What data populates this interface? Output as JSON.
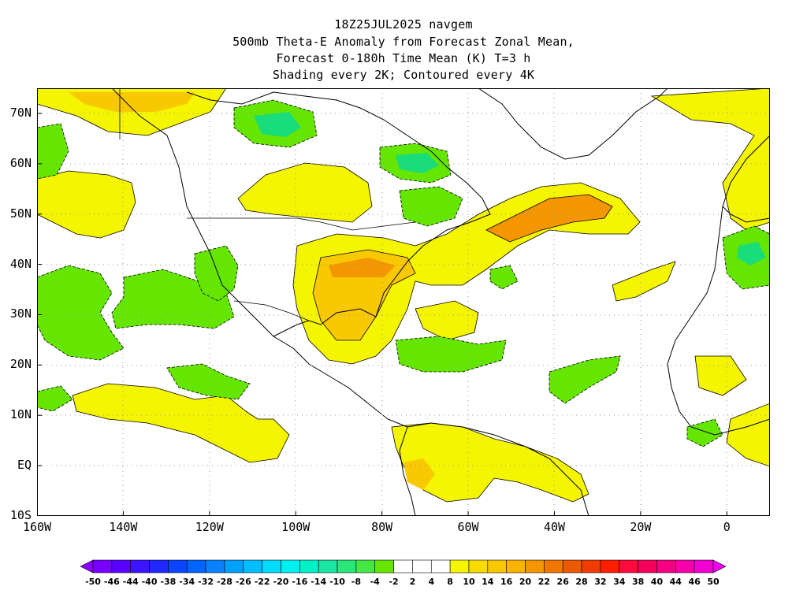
{
  "title": {
    "line1": "18Z25JUL2025 navgem",
    "line2": "500mb Theta-E Anomaly from Forecast Zonal Mean,",
    "line3": "Forecast 0-180h Time Mean (K) T=3 h",
    "line4": "Shading every 2K; Contoured every 4K"
  },
  "map": {
    "lon_range": [
      -160,
      10
    ],
    "lat_range": [
      -10,
      75
    ],
    "lat_ticks": [
      {
        "value": 70,
        "label": "70N"
      },
      {
        "value": 60,
        "label": "60N"
      },
      {
        "value": 50,
        "label": "50N"
      },
      {
        "value": 40,
        "label": "40N"
      },
      {
        "value": 30,
        "label": "30N"
      },
      {
        "value": 20,
        "label": "20N"
      },
      {
        "value": 10,
        "label": "10N"
      },
      {
        "value": 0,
        "label": "EQ"
      },
      {
        "value": -10,
        "label": "10S"
      }
    ],
    "lon_ticks": [
      {
        "value": -160,
        "label": "160W"
      },
      {
        "value": -140,
        "label": "140W"
      },
      {
        "value": -120,
        "label": "120W"
      },
      {
        "value": -100,
        "label": "100W"
      },
      {
        "value": -80,
        "label": "80W"
      },
      {
        "value": -60,
        "label": "60W"
      },
      {
        "value": -40,
        "label": "40W"
      },
      {
        "value": -20,
        "label": "20W"
      },
      {
        "value": 0,
        "label": "0"
      }
    ],
    "grid": "dotted",
    "colors": {
      "positive_light": "#f5f500",
      "positive_mid": "#f8c800",
      "positive_strong": "#f39600",
      "negative_light": "#64e600",
      "negative_mid": "#19dc7a",
      "coast": "#000000"
    }
  },
  "colorbar": {
    "labels": [
      "-50",
      "-46",
      "-44",
      "-40",
      "-38",
      "-34",
      "-32",
      "-28",
      "-26",
      "-22",
      "-20",
      "-16",
      "-14",
      "-10",
      "-8",
      "-4",
      "-2",
      "2",
      "4",
      "8",
      "10",
      "14",
      "16",
      "20",
      "22",
      "26",
      "28",
      "32",
      "34",
      "38",
      "40",
      "44",
      "46",
      "50"
    ],
    "colors": [
      "#8c00ff",
      "#7800ff",
      "#5a00ff",
      "#3c14ff",
      "#1e28ff",
      "#0a46ff",
      "#0064ff",
      "#0a82ff",
      "#00a0ff",
      "#00beff",
      "#00dcff",
      "#00f0f0",
      "#00f0c8",
      "#19e6a0",
      "#28e678",
      "#46e646",
      "#64e600",
      "#ffffff",
      "#ffffff",
      "#ffffff",
      "#f5f500",
      "#f8dc00",
      "#f8c800",
      "#f8b400",
      "#f39600",
      "#f07800",
      "#eb5a00",
      "#f03c00",
      "#ff1e00",
      "#ff0a3c",
      "#f5005a",
      "#f50082",
      "#f500aa",
      "#f000d2",
      "#f000f0"
    ]
  }
}
